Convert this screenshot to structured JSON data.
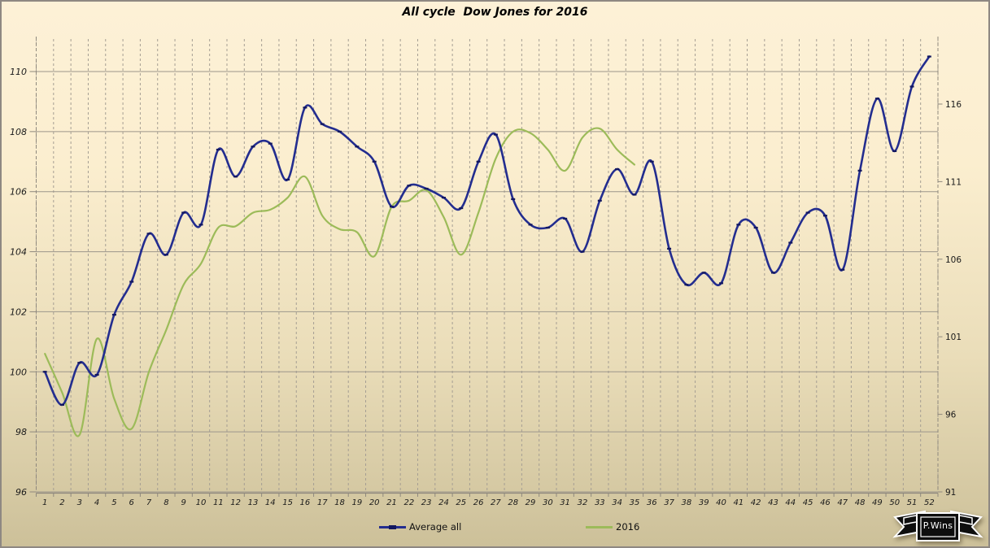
{
  "title": "All cycle  Dow Jones for 2016",
  "badge": {
    "text": "P.Wins"
  },
  "legend": [
    {
      "label": "Average all",
      "color": "#232D8F",
      "marker_color": "#12175F"
    },
    {
      "label": "2016",
      "color": "#9CBB59"
    }
  ],
  "chart_data": {
    "type": "line",
    "title": "All cycle Dow Jones for 2016",
    "xlabel": "",
    "ylabel": "",
    "x": [
      1,
      2,
      3,
      4,
      5,
      6,
      7,
      8,
      9,
      10,
      11,
      12,
      13,
      14,
      15,
      16,
      17,
      18,
      19,
      20,
      21,
      22,
      23,
      24,
      25,
      26,
      27,
      28,
      29,
      30,
      31,
      32,
      33,
      34,
      35,
      36,
      37,
      38,
      39,
      40,
      41,
      42,
      43,
      44,
      45,
      46,
      47,
      48,
      49,
      50,
      51,
      52
    ],
    "series": [
      {
        "name": "Average all",
        "color": "#232D8F",
        "marker": "dash",
        "marker_color": "#12175F",
        "values": [
          100.0,
          98.9,
          100.3,
          99.9,
          101.9,
          103.0,
          104.6,
          103.9,
          105.3,
          104.9,
          107.4,
          106.5,
          107.5,
          107.6,
          106.4,
          108.8,
          108.25,
          108.0,
          107.5,
          107.0,
          105.5,
          106.2,
          106.1,
          105.8,
          105.45,
          107.0,
          107.9,
          105.75,
          104.9,
          104.8,
          105.1,
          104.0,
          105.7,
          106.75,
          105.9,
          107.0,
          104.1,
          102.9,
          103.3,
          102.95,
          104.9,
          104.8,
          103.3,
          104.3,
          105.3,
          105.2,
          103.4,
          106.7,
          109.1,
          107.35,
          109.5,
          110.5
        ]
      },
      {
        "name": "2016",
        "color": "#9CBB59",
        "marker": "none",
        "values": [
          100.6,
          99.3,
          97.9,
          101.1,
          99.1,
          98.1,
          100.0,
          101.4,
          102.9,
          103.6,
          104.8,
          104.85,
          105.3,
          105.4,
          105.8,
          106.5,
          105.2,
          104.75,
          104.65,
          103.85,
          105.5,
          105.7,
          106.05,
          105.15,
          103.9,
          105.3,
          107.1,
          108.0,
          107.95,
          107.4,
          106.7,
          107.8,
          108.1,
          107.4,
          106.9
        ]
      }
    ],
    "left_axis": {
      "ticks": [
        96,
        98,
        100,
        102,
        104,
        106,
        108,
        110
      ],
      "min": 96,
      "max": 111.2
    },
    "right_axis": {
      "ticks": [
        91,
        96,
        101,
        106,
        111,
        116
      ],
      "min": 91,
      "max": 120.4
    },
    "x_ticks": [
      1,
      2,
      3,
      4,
      5,
      6,
      7,
      8,
      9,
      10,
      11,
      12,
      13,
      14,
      15,
      16,
      17,
      18,
      19,
      20,
      21,
      22,
      23,
      24,
      25,
      26,
      27,
      28,
      29,
      30,
      31,
      32,
      33,
      34,
      35,
      36,
      37,
      38,
      39,
      40,
      41,
      42,
      43,
      44,
      45,
      46,
      47,
      48,
      49,
      50,
      51,
      52
    ],
    "grid": {
      "horizontal": "solid",
      "vertical": "dashed"
    },
    "legend_position": "bottom",
    "colors": {
      "grid_h": "#9C968B",
      "grid_v": "#A59E93",
      "axis": "#8E887D",
      "label": "#1a1a1a"
    }
  }
}
